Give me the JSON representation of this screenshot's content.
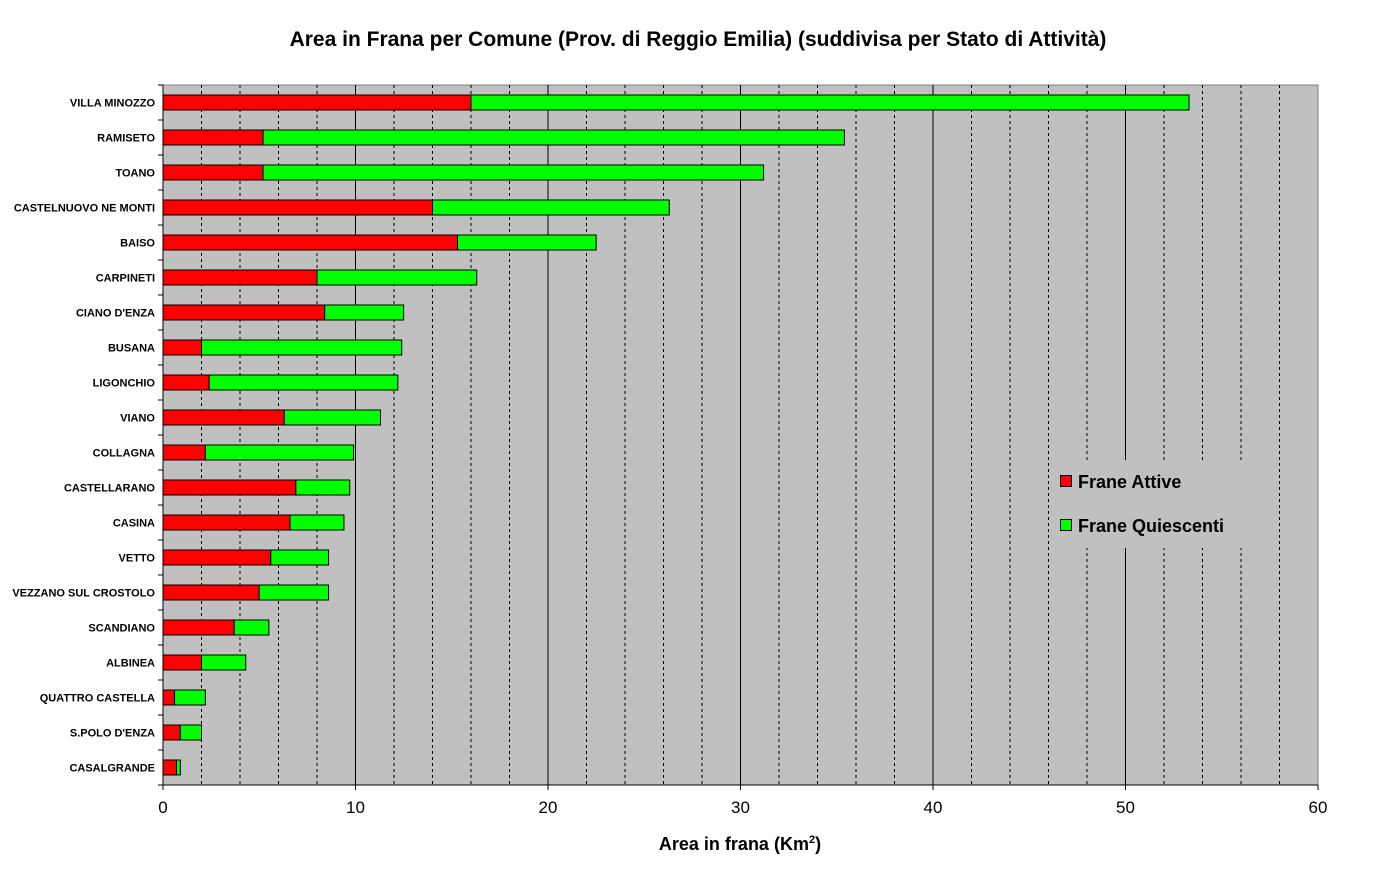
{
  "chart_data": {
    "type": "bar",
    "orientation": "horizontal",
    "stacked": true,
    "title": "Area in Frana per Comune (Prov. di Reggio Emilia) (suddivisa per Stato di Attività)",
    "xlabel_main": "Area in frana (Km",
    "xlabel_sup": "2",
    "xlabel_tail": ")",
    "xlim": [
      0,
      60
    ],
    "xticks": [
      0,
      10,
      20,
      30,
      40,
      50,
      60
    ],
    "grid": true,
    "legend_position": "right-middle",
    "categories": [
      "VILLA MINOZZO",
      "RAMISETO",
      "TOANO",
      "CASTELNUOVO NE MONTI",
      "BAISO",
      "CARPINETI",
      "CIANO D'ENZA",
      "BUSANA",
      "LIGONCHIO",
      "VIANO",
      "COLLAGNA",
      "CASTELLARANO",
      "CASINA",
      "VETTO",
      "VEZZANO SUL CROSTOLO",
      "SCANDIANO",
      "ALBINEA",
      "QUATTRO CASTELLA",
      "S.POLO D'ENZA",
      "CASALGRANDE"
    ],
    "series": [
      {
        "name": "Frane Attive",
        "color": "#ff0000",
        "values": [
          16.0,
          5.2,
          5.2,
          14.0,
          15.3,
          8.0,
          8.4,
          2.0,
          2.4,
          6.3,
          2.2,
          6.9,
          6.6,
          5.6,
          5.0,
          3.7,
          2.0,
          0.6,
          0.9,
          0.7
        ]
      },
      {
        "name": "Frane Quiescenti",
        "color": "#00ff00",
        "values": [
          37.3,
          30.2,
          26.0,
          12.3,
          7.2,
          8.3,
          4.1,
          10.4,
          9.8,
          5.0,
          7.7,
          2.8,
          2.8,
          3.0,
          3.6,
          1.8,
          2.3,
          1.6,
          1.1,
          0.2
        ]
      }
    ]
  }
}
